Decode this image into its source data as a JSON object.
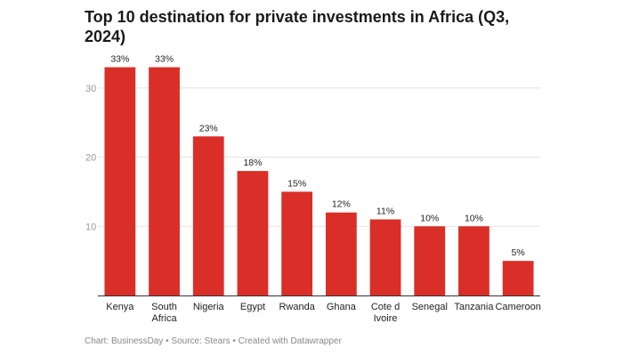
{
  "chart_data": {
    "type": "bar",
    "title": "Top 10 destination for private investments in Africa (Q3, 2024)",
    "categories": [
      [
        "Kenya"
      ],
      [
        "South",
        "Africa"
      ],
      [
        "Nigeria"
      ],
      [
        "Egypt"
      ],
      [
        "Rwanda"
      ],
      [
        "Ghana"
      ],
      [
        "Cote d",
        "Ivoire"
      ],
      [
        "Senegal"
      ],
      [
        "Tanzania"
      ],
      [
        "Cameroon"
      ]
    ],
    "values": [
      33,
      33,
      23,
      18,
      15,
      12,
      11,
      10,
      10,
      5
    ],
    "data_labels": [
      "33%",
      "33%",
      "23%",
      "18%",
      "15%",
      "12%",
      "11%",
      "10%",
      "10%",
      "5%"
    ],
    "yticks": [
      10,
      20,
      30
    ],
    "ylim": [
      0,
      35
    ],
    "grid": true,
    "bar_color": "#d92f28",
    "source": "Chart: BusinessDay • Source: Stears • Created with Datawrapper"
  }
}
